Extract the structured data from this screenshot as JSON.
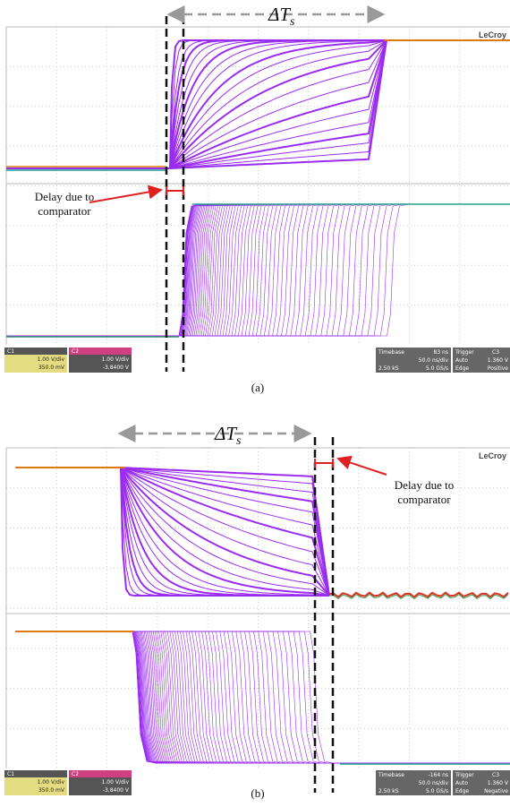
{
  "panels": [
    {
      "label": "(a)",
      "annotation": {
        "delta": "ΔT",
        "delta_sub": "s",
        "delay_lines": [
          "Delay due to",
          "comparator"
        ]
      },
      "scope": {
        "brand": "LeCroy",
        "ch1": {
          "name": "C1",
          "scale": "1.00 V/div",
          "offset": "350.0 mV"
        },
        "ch2": {
          "name": "C2",
          "scale": "1.00 V/div",
          "offset": "-3.8400 V"
        },
        "timebase": {
          "label": "Timebase",
          "delay": "83 ns",
          "div": "50.0 ns/div",
          "samples": "2.50 kS",
          "rate": "5.0 GS/s"
        },
        "trigger": {
          "label": "Trigger",
          "channel": "C3",
          "mode": "Auto",
          "level": "1.360 V",
          "type": "Edge",
          "slope": "Positive"
        }
      }
    },
    {
      "label": "(b)",
      "annotation": {
        "delta": "ΔT",
        "delta_sub": "s",
        "delay_lines": [
          "Delay due to",
          "comparator"
        ]
      },
      "scope": {
        "brand": "LeCroy",
        "ch1": {
          "name": "C1",
          "scale": "1.00 V/div",
          "offset": "350.0 mV"
        },
        "ch2": {
          "name": "C2",
          "scale": "1.00 V/div",
          "offset": "-3.8400 V"
        },
        "timebase": {
          "label": "Timebase",
          "delay": "-164 ns",
          "div": "50.0 ns/div",
          "samples": "2.50 kS",
          "rate": "5.0 GS/s"
        },
        "trigger": {
          "label": "Trigger",
          "channel": "C3",
          "mode": "Auto",
          "level": "1.360 V",
          "type": "Edge",
          "slope": "Negative"
        }
      }
    }
  ]
}
